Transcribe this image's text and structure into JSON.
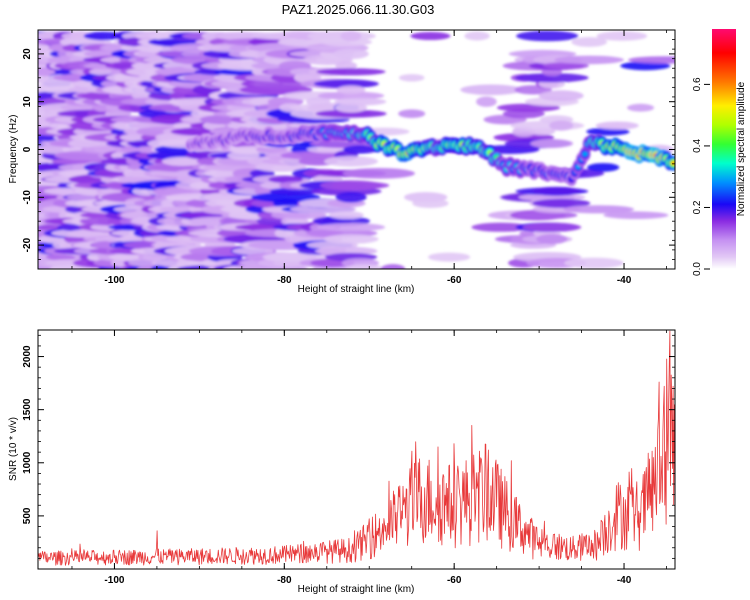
{
  "title": "PAZ1.2025.066.11.30.G03",
  "chart_data": [
    {
      "type": "heatmap",
      "xlabel": "Height of straight line (km)",
      "ylabel": "Frequency (Hz)",
      "xlim": [
        -109,
        -34
      ],
      "ylim": [
        -25,
        25
      ],
      "xticks": [
        -100,
        -80,
        -60,
        -40
      ],
      "yticks": [
        -20,
        -10,
        0,
        10,
        20
      ],
      "colorbar": {
        "label": "Normalized spectral amplitude",
        "range": [
          0.0,
          0.78
        ],
        "ticks": [
          0.0,
          0.2,
          0.4,
          0.6
        ]
      },
      "ridge": [
        {
          "x": -91,
          "y": 1.0,
          "a": 0.18
        },
        {
          "x": -86,
          "y": 2.5,
          "a": 0.2
        },
        {
          "x": -80,
          "y": 3.0,
          "a": 0.22
        },
        {
          "x": -75,
          "y": 3.5,
          "a": 0.28
        },
        {
          "x": -71,
          "y": 3.5,
          "a": 0.36
        },
        {
          "x": -68,
          "y": 0.5,
          "a": 0.5
        },
        {
          "x": -66,
          "y": -0.5,
          "a": 0.6
        },
        {
          "x": -63,
          "y": 0.5,
          "a": 0.4
        },
        {
          "x": -60,
          "y": 1.0,
          "a": 0.45
        },
        {
          "x": -57,
          "y": 0.5,
          "a": 0.48
        },
        {
          "x": -54,
          "y": -3.5,
          "a": 0.3
        },
        {
          "x": -50,
          "y": -4.5,
          "a": 0.26
        },
        {
          "x": -46,
          "y": -6.0,
          "a": 0.24
        },
        {
          "x": -44,
          "y": 1.5,
          "a": 0.35
        },
        {
          "x": -41,
          "y": 0.5,
          "a": 0.55
        },
        {
          "x": -38,
          "y": -1.0,
          "a": 0.66
        },
        {
          "x": -36,
          "y": -1.5,
          "a": 0.6
        },
        {
          "x": -34,
          "y": -2.5,
          "a": 0.5
        }
      ]
    },
    {
      "type": "line",
      "xlabel": "Height of straight line (km)",
      "ylabel": "SNR (10 * v/v)",
      "xlim": [
        -109,
        -34
      ],
      "ylim": [
        0,
        2250
      ],
      "xticks": [
        -100,
        -80,
        -60,
        -40
      ],
      "yticks": [
        500,
        1000,
        1500,
        2000
      ],
      "color": "#e8393a",
      "envelope": [
        {
          "x": -109,
          "y": 130
        },
        {
          "x": -90,
          "y": 150
        },
        {
          "x": -80,
          "y": 170
        },
        {
          "x": -72,
          "y": 230
        },
        {
          "x": -68,
          "y": 500
        },
        {
          "x": -64,
          "y": 850
        },
        {
          "x": -60,
          "y": 760
        },
        {
          "x": -56,
          "y": 920
        },
        {
          "x": -53,
          "y": 560
        },
        {
          "x": -50,
          "y": 300
        },
        {
          "x": -46,
          "y": 240
        },
        {
          "x": -43,
          "y": 300
        },
        {
          "x": -41,
          "y": 650
        },
        {
          "x": -38,
          "y": 650
        },
        {
          "x": -36,
          "y": 1100
        },
        {
          "x": -35,
          "y": 1600
        },
        {
          "x": -34,
          "y": 1500
        }
      ],
      "peaks": [
        {
          "x": -95,
          "y": 360
        },
        {
          "x": -65,
          "y": 1110
        },
        {
          "x": -56,
          "y": 1120
        },
        {
          "x": -35.9,
          "y": 1760
        },
        {
          "x": -35.3,
          "y": 1720
        },
        {
          "x": -34.6,
          "y": 2240
        },
        {
          "x": -34.2,
          "y": 1720
        }
      ]
    }
  ]
}
